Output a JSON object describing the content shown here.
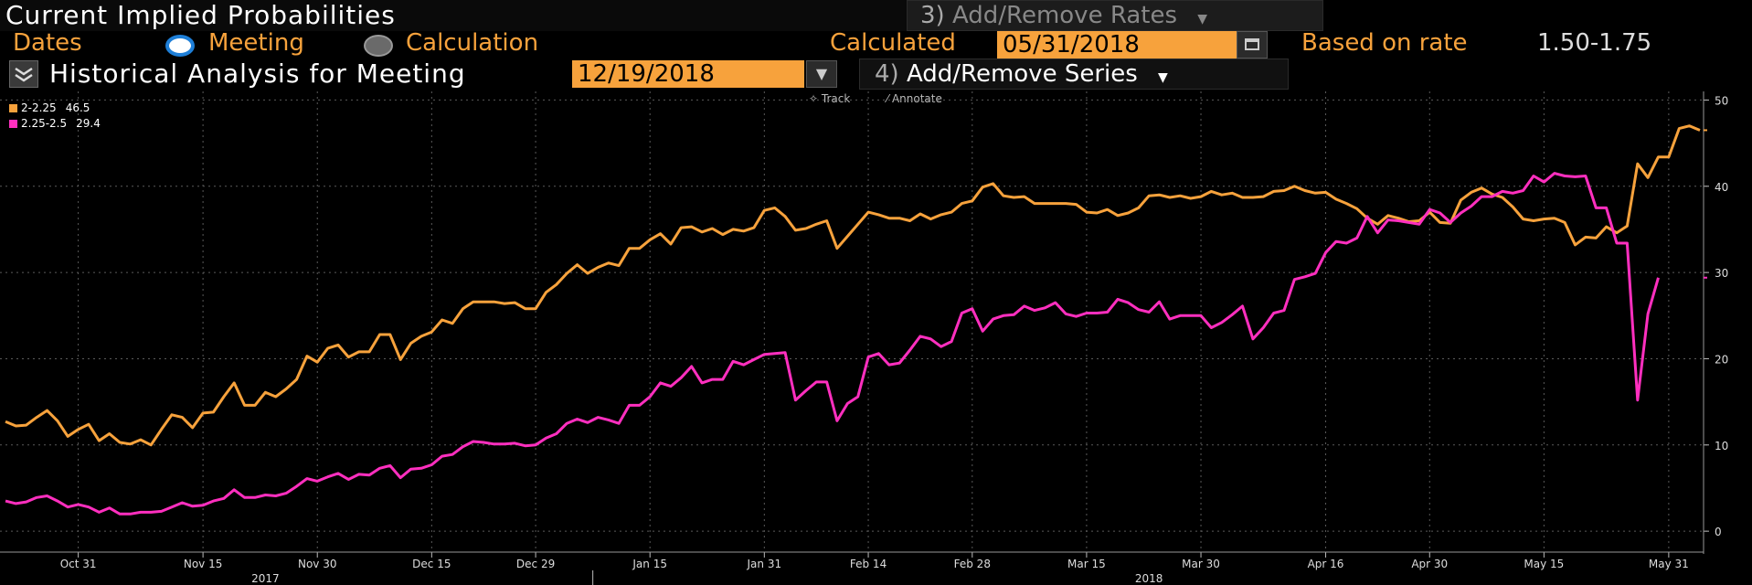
{
  "header": {
    "title": "Current Implied Probabilities",
    "add_remove_rates": {
      "num": "3)",
      "label": "Add/Remove Rates"
    },
    "dates_label": "Dates",
    "meeting_label": "Meeting",
    "calculation_label": "Calculation",
    "calculated_label": "Calculated",
    "calculated_date": "05/31/2018",
    "based_on_label": "Based on rate",
    "based_on_value": "1.50-1.75",
    "historical_label": "Historical Analysis for Meeting",
    "meeting_date": "12/19/2018",
    "add_remove_series": {
      "num": "4)",
      "label": "Add/Remove Series"
    }
  },
  "toolbar": {
    "track": "Track",
    "annotate": "Annotate"
  },
  "legend": [
    {
      "name": "2-2.25",
      "value": "46.5",
      "color": "#f7a23c"
    },
    {
      "name": "2.25-2.5",
      "value": "29.4",
      "color": "#ff2fbf"
    }
  ],
  "chart_data": {
    "type": "line",
    "title": "",
    "xlabel": "",
    "ylabel": "",
    "ylim": [
      -2,
      51
    ],
    "yticks": [
      0,
      10,
      20,
      30,
      40,
      50
    ],
    "grid": true,
    "legend_position": "top-left",
    "x_ticks": [
      {
        "label": "Oct 31",
        "index": 7
      },
      {
        "label": "Nov 15",
        "index": 19
      },
      {
        "label": "Nov 30",
        "index": 30
      },
      {
        "label": "Dec 15",
        "index": 41
      },
      {
        "label": "Dec 29",
        "index": 51
      },
      {
        "label": "Jan 15",
        "index": 62
      },
      {
        "label": "Jan 31",
        "index": 73
      },
      {
        "label": "Feb 14",
        "index": 83
      },
      {
        "label": "Feb 28",
        "index": 93
      },
      {
        "label": "Mar 15",
        "index": 104
      },
      {
        "label": "Mar 30",
        "index": 115
      },
      {
        "label": "Apr 16",
        "index": 127
      },
      {
        "label": "Apr 30",
        "index": 137
      },
      {
        "label": "May 15",
        "index": 148
      },
      {
        "label": "May 31",
        "index": 160
      }
    ],
    "year_labels": [
      {
        "label": "2017",
        "index": 25
      },
      {
        "label": "2018",
        "index": 110
      }
    ],
    "series": [
      {
        "name": "2-2.25",
        "color": "#f7a23c",
        "values": [
          12.7,
          12.2,
          12.3,
          13.2,
          14.0,
          12.8,
          11.0,
          11.8,
          12.4,
          10.5,
          11.3,
          10.3,
          10.1,
          10.6,
          10.0,
          11.8,
          13.5,
          13.2,
          12.0,
          13.7,
          13.8,
          15.6,
          17.2,
          14.6,
          14.6,
          16.1,
          15.6,
          16.5,
          17.6,
          20.3,
          19.6,
          21.2,
          21.6,
          20.2,
          20.8,
          20.8,
          22.8,
          22.8,
          19.9,
          21.8,
          22.6,
          23.1,
          24.5,
          24.1,
          25.8,
          26.6,
          26.6,
          26.6,
          26.4,
          26.5,
          25.8,
          25.8,
          27.7,
          28.6,
          29.9,
          30.9,
          29.9,
          30.6,
          31.1,
          30.8,
          32.8,
          32.8,
          33.8,
          34.5,
          33.3,
          35.2,
          35.3,
          34.7,
          35.1,
          34.4,
          35.0,
          34.8,
          35.2,
          37.2,
          37.5,
          36.5,
          34.9,
          35.1,
          35.6,
          36.0,
          32.8,
          34.2,
          35.6,
          37.0,
          36.7,
          36.3,
          36.3,
          36.0,
          36.8,
          36.2,
          36.7,
          37.0,
          38.0,
          38.3,
          39.9,
          40.3,
          38.9,
          38.7,
          38.8,
          38.0,
          38.0,
          38.0,
          38.0,
          37.9,
          37.0,
          36.9,
          37.3,
          36.6,
          36.9,
          37.5,
          38.9,
          39.0,
          38.7,
          38.9,
          38.6,
          38.8,
          39.4,
          39.0,
          39.2,
          38.7,
          38.7,
          38.8,
          39.4,
          39.5,
          40.0,
          39.5,
          39.2,
          39.3,
          38.5,
          38.0,
          37.4,
          36.3,
          35.6,
          36.6,
          36.3,
          35.9,
          36.0,
          37.0,
          35.8,
          35.7,
          38.4,
          39.3,
          39.8,
          39.1,
          38.7,
          37.6,
          36.2,
          36.0,
          36.2,
          36.3,
          35.8,
          33.2,
          34.1,
          34.0,
          35.3,
          34.6,
          35.4,
          42.6,
          41.0,
          43.4,
          43.4,
          46.7,
          47.0,
          46.5
        ]
      },
      {
        "name": "2.25-2.5",
        "color": "#ff2fbf",
        "values": [
          3.5,
          3.2,
          3.4,
          3.9,
          4.1,
          3.5,
          2.8,
          3.1,
          2.8,
          2.2,
          2.7,
          2.0,
          2.0,
          2.2,
          2.2,
          2.3,
          2.8,
          3.3,
          2.9,
          3.0,
          3.5,
          3.8,
          4.8,
          3.9,
          3.9,
          4.2,
          4.1,
          4.4,
          5.2,
          6.1,
          5.8,
          6.3,
          6.7,
          6.0,
          6.6,
          6.5,
          7.3,
          7.6,
          6.2,
          7.2,
          7.3,
          7.7,
          8.7,
          8.9,
          9.8,
          10.4,
          10.3,
          10.1,
          10.1,
          10.2,
          9.9,
          10.0,
          10.8,
          11.3,
          12.5,
          13.0,
          12.6,
          13.2,
          12.9,
          12.5,
          14.6,
          14.6,
          15.6,
          17.2,
          16.8,
          17.8,
          19.1,
          17.2,
          17.6,
          17.6,
          19.7,
          19.3,
          19.9,
          20.5,
          20.6,
          20.7,
          15.2,
          16.3,
          17.3,
          17.3,
          12.8,
          14.8,
          15.6,
          20.2,
          20.6,
          19.3,
          19.5,
          21.0,
          22.6,
          22.3,
          21.4,
          22.0,
          25.3,
          25.8,
          23.2,
          24.6,
          25.0,
          25.1,
          26.1,
          25.6,
          25.9,
          26.5,
          25.2,
          24.9,
          25.3,
          25.3,
          25.4,
          26.9,
          26.5,
          25.7,
          25.4,
          26.6,
          24.6,
          25.0,
          25.0,
          25.0,
          23.6,
          24.2,
          25.1,
          26.1,
          22.3,
          23.6,
          25.3,
          25.6,
          29.2,
          29.5,
          29.9,
          32.3,
          33.6,
          33.4,
          34.0,
          36.5,
          34.6,
          36.1,
          36.0,
          35.8,
          35.6,
          37.3,
          36.9,
          35.8,
          36.9,
          37.7,
          38.8,
          38.8,
          39.4,
          39.2,
          39.5,
          41.2,
          40.5,
          41.5,
          41.2,
          41.1,
          41.2,
          37.5,
          37.5,
          33.4,
          33.4,
          15.2,
          25.2,
          29.4
        ]
      }
    ]
  }
}
